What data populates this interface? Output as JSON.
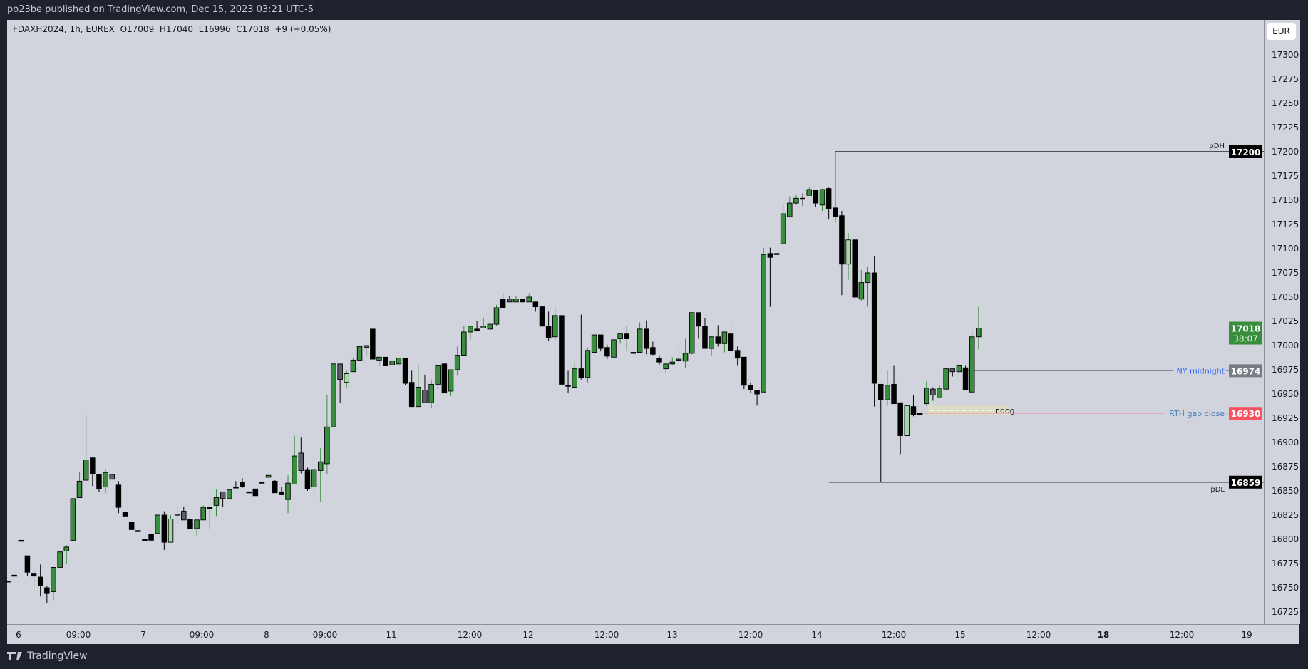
{
  "header": {
    "publish_text": "po23be published on TradingView.com, Dec 15, 2023 03:21 UTC-5"
  },
  "legend": {
    "symbol": "FDAXH2024, 1h, EUREX",
    "open": "O17009",
    "high": "H17040",
    "low": "L16996",
    "close": "C17018",
    "change": "+9 (+0.05%)"
  },
  "currency_button": "EUR",
  "footer": {
    "brand": "TradingView"
  },
  "colors": {
    "up": "#388e3c",
    "down": "#000000",
    "neutral": "#5d606b",
    "up_light": "#a5d6a7",
    "background": "#d1d4dc",
    "current_price": "#388e3c",
    "ny_midnight": "#2962ff",
    "rth_gap": "#f7525f"
  },
  "chart_data": {
    "type": "candlestick",
    "ylim": [
      16715,
      17320
    ],
    "y_ticks": [
      "17300",
      "17275",
      "17250",
      "17225",
      "17200",
      "17175",
      "17150",
      "17125",
      "17100",
      "17075",
      "17050",
      "17025",
      "17000",
      "16975",
      "16950",
      "16925",
      "16900",
      "16875",
      "16850",
      "16825",
      "16800",
      "16775",
      "16750",
      "16725"
    ],
    "x_ticks": [
      "6",
      "09:00",
      "7",
      "09:00",
      "8",
      "09:00",
      "11",
      "12:00",
      "12",
      "12:00",
      "13",
      "12:00",
      "14",
      "12:00",
      "15",
      "12:00",
      "18",
      "12:00",
      "19"
    ],
    "candle_fields": [
      "open",
      "high",
      "low",
      "close",
      "style"
    ],
    "candles": [
      [
        16757,
        16757,
        16757,
        16757,
        "b"
      ],
      [
        16763,
        16763,
        16763,
        16763,
        "b"
      ],
      [
        16799,
        16799,
        16799,
        16799,
        "b"
      ],
      [
        16783,
        16783,
        16762,
        16766,
        "b"
      ],
      [
        16765,
        16768,
        16747,
        16762,
        "b"
      ],
      [
        16761,
        16774,
        16741,
        16752,
        "b"
      ],
      [
        16750,
        16752,
        16734,
        16744,
        "b"
      ],
      [
        16746,
        16771,
        16737,
        16771,
        "g"
      ],
      [
        16771,
        16788,
        16771,
        16787,
        "g"
      ],
      [
        16788,
        16794,
        16775,
        16792,
        "g"
      ],
      [
        16799,
        16842,
        16799,
        16842,
        "g"
      ],
      [
        16843,
        16869,
        16843,
        16860,
        "g"
      ],
      [
        16861,
        16929,
        16861,
        16882,
        "g"
      ],
      [
        16884,
        16885,
        16855,
        16868,
        "b"
      ],
      [
        16867,
        16867,
        16849,
        16852,
        "b"
      ],
      [
        16854,
        16872,
        16848,
        16869,
        "g"
      ],
      [
        16867,
        16867,
        16862,
        16862,
        "gr"
      ],
      [
        16856,
        16860,
        16827,
        16833,
        "b"
      ],
      [
        16828,
        16828,
        16824,
        16824,
        "b"
      ],
      [
        16818,
        16818,
        16810,
        16810,
        "b"
      ],
      [
        16809,
        16809,
        16809,
        16809,
        "b"
      ],
      [
        16800,
        16800,
        16800,
        16800,
        "b"
      ],
      [
        16805,
        16805,
        16799,
        16799,
        "b"
      ],
      [
        16806,
        16825,
        16806,
        16825,
        "g"
      ],
      [
        16825,
        16829,
        16789,
        16797,
        "b"
      ],
      [
        16797,
        16825,
        16797,
        16821,
        "lg"
      ],
      [
        16826,
        16834,
        16816,
        16826,
        "g"
      ],
      [
        16829,
        16834,
        16820,
        16820,
        "gr"
      ],
      [
        16821,
        16821,
        16811,
        16811,
        "b"
      ],
      [
        16811,
        16820,
        16804,
        16820,
        "g"
      ],
      [
        16820,
        16835,
        16820,
        16833,
        "g"
      ],
      [
        16833,
        16834,
        16811,
        16833,
        "b"
      ],
      [
        16835,
        16852,
        16824,
        16843,
        "g"
      ],
      [
        16849,
        16849,
        16833,
        16842,
        "gr"
      ],
      [
        16842,
        16851,
        16842,
        16851,
        "g"
      ],
      [
        16854,
        16860,
        16854,
        16854,
        "b"
      ],
      [
        16859,
        16863,
        16853,
        16854,
        "b"
      ],
      [
        16849,
        16849,
        16849,
        16849,
        "b"
      ],
      [
        16852,
        16852,
        16845,
        16845,
        "b"
      ],
      [
        16859,
        16859,
        16859,
        16859,
        "b"
      ],
      [
        16864,
        16866,
        16864,
        16866,
        "g"
      ],
      [
        16860,
        16861,
        16848,
        16848,
        "b"
      ],
      [
        16849,
        16854,
        16846,
        16846,
        "b"
      ],
      [
        16841,
        16866,
        16827,
        16858,
        "g"
      ],
      [
        16857,
        16907,
        16857,
        16886,
        "g"
      ],
      [
        16889,
        16905,
        16868,
        16871,
        "gr"
      ],
      [
        16872,
        16874,
        16850,
        16852,
        "b"
      ],
      [
        16854,
        16878,
        16844,
        16872,
        "g"
      ],
      [
        16871,
        16894,
        16839,
        16880,
        "g"
      ],
      [
        16878,
        16949,
        16867,
        16916,
        "g"
      ],
      [
        16916,
        16982,
        16916,
        16981,
        "g"
      ],
      [
        16981,
        16981,
        16941,
        16965,
        "gr"
      ],
      [
        16962,
        16974,
        16957,
        16971,
        "lg"
      ],
      [
        16973,
        16987,
        16973,
        16985,
        "g"
      ],
      [
        16985,
        16999,
        16985,
        16999,
        "g"
      ],
      [
        17000,
        17000,
        16990,
        16998,
        "gr"
      ],
      [
        17017,
        17017,
        16986,
        16986,
        "b"
      ],
      [
        16985,
        16988,
        16979,
        16988,
        "g"
      ],
      [
        16988,
        16988,
        16979,
        16979,
        "b"
      ],
      [
        16980,
        16984,
        16980,
        16984,
        "g"
      ],
      [
        16981,
        16987,
        16981,
        16987,
        "g"
      ],
      [
        16987,
        16987,
        16959,
        16961,
        "b"
      ],
      [
        16962,
        16974,
        16937,
        16937,
        "b"
      ],
      [
        16937,
        16981,
        16937,
        16957,
        "g"
      ],
      [
        16954,
        16970,
        16941,
        16941,
        "gr"
      ],
      [
        16941,
        16965,
        16936,
        16960,
        "g"
      ],
      [
        16960,
        16979,
        16955,
        16979,
        "g"
      ],
      [
        16981,
        16982,
        16951,
        16951,
        "b"
      ],
      [
        16953,
        16975,
        16948,
        16975,
        "g"
      ],
      [
        16975,
        16999,
        16969,
        16990,
        "g"
      ],
      [
        16990,
        17020,
        16990,
        17014,
        "g"
      ],
      [
        17014,
        17020,
        17006,
        17020,
        "g"
      ],
      [
        17017,
        17025,
        17015,
        17015,
        "b"
      ],
      [
        17018,
        17028,
        17018,
        17020,
        "g"
      ],
      [
        17017,
        17029,
        17017,
        17022,
        "g"
      ],
      [
        17022,
        17042,
        17020,
        17039,
        "g"
      ],
      [
        17048,
        17054,
        17039,
        17039,
        "b"
      ],
      [
        17048,
        17051,
        17045,
        17045,
        "gr"
      ],
      [
        17045,
        17051,
        17045,
        17048,
        "g"
      ],
      [
        17048,
        17048,
        17045,
        17045,
        "b"
      ],
      [
        17045,
        17054,
        17045,
        17050,
        "g"
      ],
      [
        17045,
        17045,
        17035,
        17040,
        "b"
      ],
      [
        17040,
        17043,
        17020,
        17020,
        "b"
      ],
      [
        17020,
        17035,
        17005,
        17008,
        "b"
      ],
      [
        17009,
        17039,
        17004,
        17031,
        "g"
      ],
      [
        17031,
        17031,
        16960,
        16960,
        "b"
      ],
      [
        16959,
        16974,
        16951,
        16959,
        "b"
      ],
      [
        16957,
        16982,
        16957,
        16976,
        "g"
      ],
      [
        16976,
        17032,
        16965,
        16967,
        "b"
      ],
      [
        16967,
        16998,
        16962,
        16995,
        "g"
      ],
      [
        16993,
        17011,
        16988,
        17011,
        "g"
      ],
      [
        17011,
        17011,
        16994,
        16997,
        "b"
      ],
      [
        16998,
        17001,
        16986,
        16989,
        "b"
      ],
      [
        16988,
        17006,
        16988,
        17006,
        "g"
      ],
      [
        17007,
        17012,
        17002,
        17012,
        "g"
      ],
      [
        17012,
        17020,
        16995,
        17007,
        "b"
      ],
      [
        16993,
        16993,
        16993,
        16993,
        "b"
      ],
      [
        16993,
        17024,
        16993,
        17017,
        "g"
      ],
      [
        17017,
        17026,
        16991,
        16997,
        "b"
      ],
      [
        16998,
        17004,
        16990,
        16991,
        "b"
      ],
      [
        16987,
        16990,
        16980,
        16983,
        "b"
      ],
      [
        16976,
        16981,
        16972,
        16981,
        "g"
      ],
      [
        16981,
        16988,
        16980,
        16983,
        "g"
      ],
      [
        16985,
        16999,
        16980,
        16986,
        "g"
      ],
      [
        16984,
        17007,
        16977,
        16992,
        "g"
      ],
      [
        16992,
        17034,
        16991,
        17034,
        "g"
      ],
      [
        17034,
        17034,
        17007,
        17020,
        "b"
      ],
      [
        17020,
        17028,
        16997,
        16997,
        "b"
      ],
      [
        16997,
        17010,
        16990,
        17009,
        "g"
      ],
      [
        17009,
        17021,
        16999,
        17002,
        "b"
      ],
      [
        17002,
        17014,
        16993,
        17014,
        "g"
      ],
      [
        17012,
        17026,
        16993,
        16995,
        "b"
      ],
      [
        16995,
        16999,
        16979,
        16987,
        "b"
      ],
      [
        16988,
        16988,
        16955,
        16959,
        "b"
      ],
      [
        16959,
        16962,
        16951,
        16954,
        "b"
      ],
      [
        16954,
        16954,
        16938,
        16950,
        "b"
      ],
      [
        16952,
        17101,
        16952,
        17094,
        "g"
      ],
      [
        17095,
        17101,
        17040,
        17091,
        "b"
      ],
      [
        17095,
        17095,
        17095,
        17095,
        "b"
      ],
      [
        17105,
        17147,
        17105,
        17136,
        "g"
      ],
      [
        17133,
        17154,
        17132,
        17147,
        "g"
      ],
      [
        17147,
        17156,
        17145,
        17152,
        "g"
      ],
      [
        17152,
        17157,
        17144,
        17152,
        "b"
      ],
      [
        17155,
        17163,
        17155,
        17161,
        "g"
      ],
      [
        17160,
        17160,
        17143,
        17147,
        "b"
      ],
      [
        17145,
        17162,
        17139,
        17161,
        "g"
      ],
      [
        17162,
        17163,
        17130,
        17141,
        "b"
      ],
      [
        17142,
        17200,
        17127,
        17133,
        "b"
      ],
      [
        17134,
        17139,
        17052,
        17084,
        "b"
      ],
      [
        17084,
        17116,
        17068,
        17109,
        "lg"
      ],
      [
        17109,
        17110,
        17050,
        17050,
        "b"
      ],
      [
        17048,
        17078,
        17046,
        17065,
        "g"
      ],
      [
        17065,
        17081,
        17040,
        17075,
        "g"
      ],
      [
        17075,
        17092,
        16937,
        16961,
        "b"
      ],
      [
        16960,
        16960,
        16859,
        16944,
        "b"
      ],
      [
        16944,
        16974,
        16938,
        16959,
        "g"
      ],
      [
        16960,
        16979,
        16940,
        16940,
        "b"
      ],
      [
        16941,
        16941,
        16888,
        16907,
        "b"
      ],
      [
        16907,
        16940,
        16907,
        16938,
        "lg"
      ],
      [
        16937,
        16949,
        16927,
        16929,
        "b"
      ],
      [
        16930,
        16930,
        16930,
        16930,
        "b"
      ],
      [
        16940,
        16963,
        16938,
        16956,
        "g"
      ],
      [
        16955,
        16957,
        16943,
        16949,
        "gr"
      ],
      [
        16946,
        16959,
        16946,
        16956,
        "g"
      ],
      [
        16955,
        16976,
        16955,
        16976,
        "g"
      ],
      [
        16976,
        16976,
        16968,
        16973,
        "gr"
      ],
      [
        16973,
        16982,
        16963,
        16979,
        "g"
      ],
      [
        16977,
        16979,
        16954,
        16954,
        "b"
      ],
      [
        16952,
        17016,
        16952,
        17009,
        "g"
      ],
      [
        17009,
        17040,
        16996,
        17018,
        "g"
      ]
    ],
    "levels": [
      {
        "name": "pDH",
        "price": 17200,
        "label": "pDH",
        "tag": "17200",
        "color": "#000000",
        "tag_color": "#000000",
        "label_color": "#131722"
      },
      {
        "name": "pDL",
        "price": 16859,
        "label": "pDL",
        "tag": "16859",
        "color": "#000000",
        "tag_color": "#000000",
        "label_color": "#131722"
      },
      {
        "name": "ny-midnight",
        "price": 16974,
        "label": "NY midnight",
        "tag": "16974",
        "color": "#787b86",
        "tag_color": "#787b86",
        "label_color": "#2962ff"
      },
      {
        "name": "rth-gap-close",
        "price": 16930,
        "label": "RTH gap close",
        "tag": "16930",
        "color": "#e8a0a8",
        "tag_color": "#f7525f",
        "label_color": "#4a7fb5"
      }
    ],
    "ndog": {
      "label": "ndog",
      "top": 16938,
      "bottom": 16928
    },
    "current_price": {
      "price": 17018,
      "tag": "17018",
      "countdown": "38:07"
    }
  }
}
